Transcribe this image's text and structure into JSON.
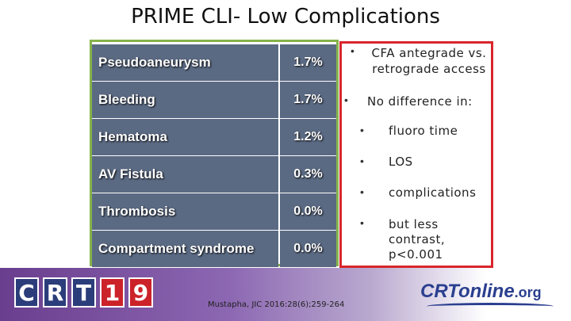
{
  "title": "PRIME CLI- Low Complications",
  "table": {
    "rows": [
      {
        "name": "Pseudoaneurysm",
        "value": "1.7%"
      },
      {
        "name": "Bleeding",
        "value": "1.7%"
      },
      {
        "name": "Hematoma",
        "value": "1.2%"
      },
      {
        "name": "AV Fistula",
        "value": "0.3%"
      },
      {
        "name": "Thrombosis",
        "value": "0.0%"
      },
      {
        "name": "Compartment syndrome",
        "value": "0.0%"
      }
    ]
  },
  "bullets": {
    "main1": "CFA antegrade vs. retrograde access",
    "main1_line1": "CFA antegrade vs.",
    "main1_line2": "retrograde access",
    "main2": "No difference in:",
    "sub": [
      "fluoro time",
      "LOS",
      "complications"
    ],
    "sub_last_line1": "but less",
    "sub_last_line2": "contrast,",
    "sub_last_line3": "p<0.001"
  },
  "footer": {
    "crt_letters": [
      "C",
      "R",
      "T",
      "1",
      "9"
    ],
    "citation": "Mustapha, JIC 2016:28(6);259-264",
    "logo_main": "CRTonline",
    "logo_suffix": ".org"
  },
  "colors": {
    "table_cell": "#5b6a83",
    "table_border": "#86b34b",
    "box_border": "#d8262c",
    "brand_blue": "#2a3f8f"
  }
}
